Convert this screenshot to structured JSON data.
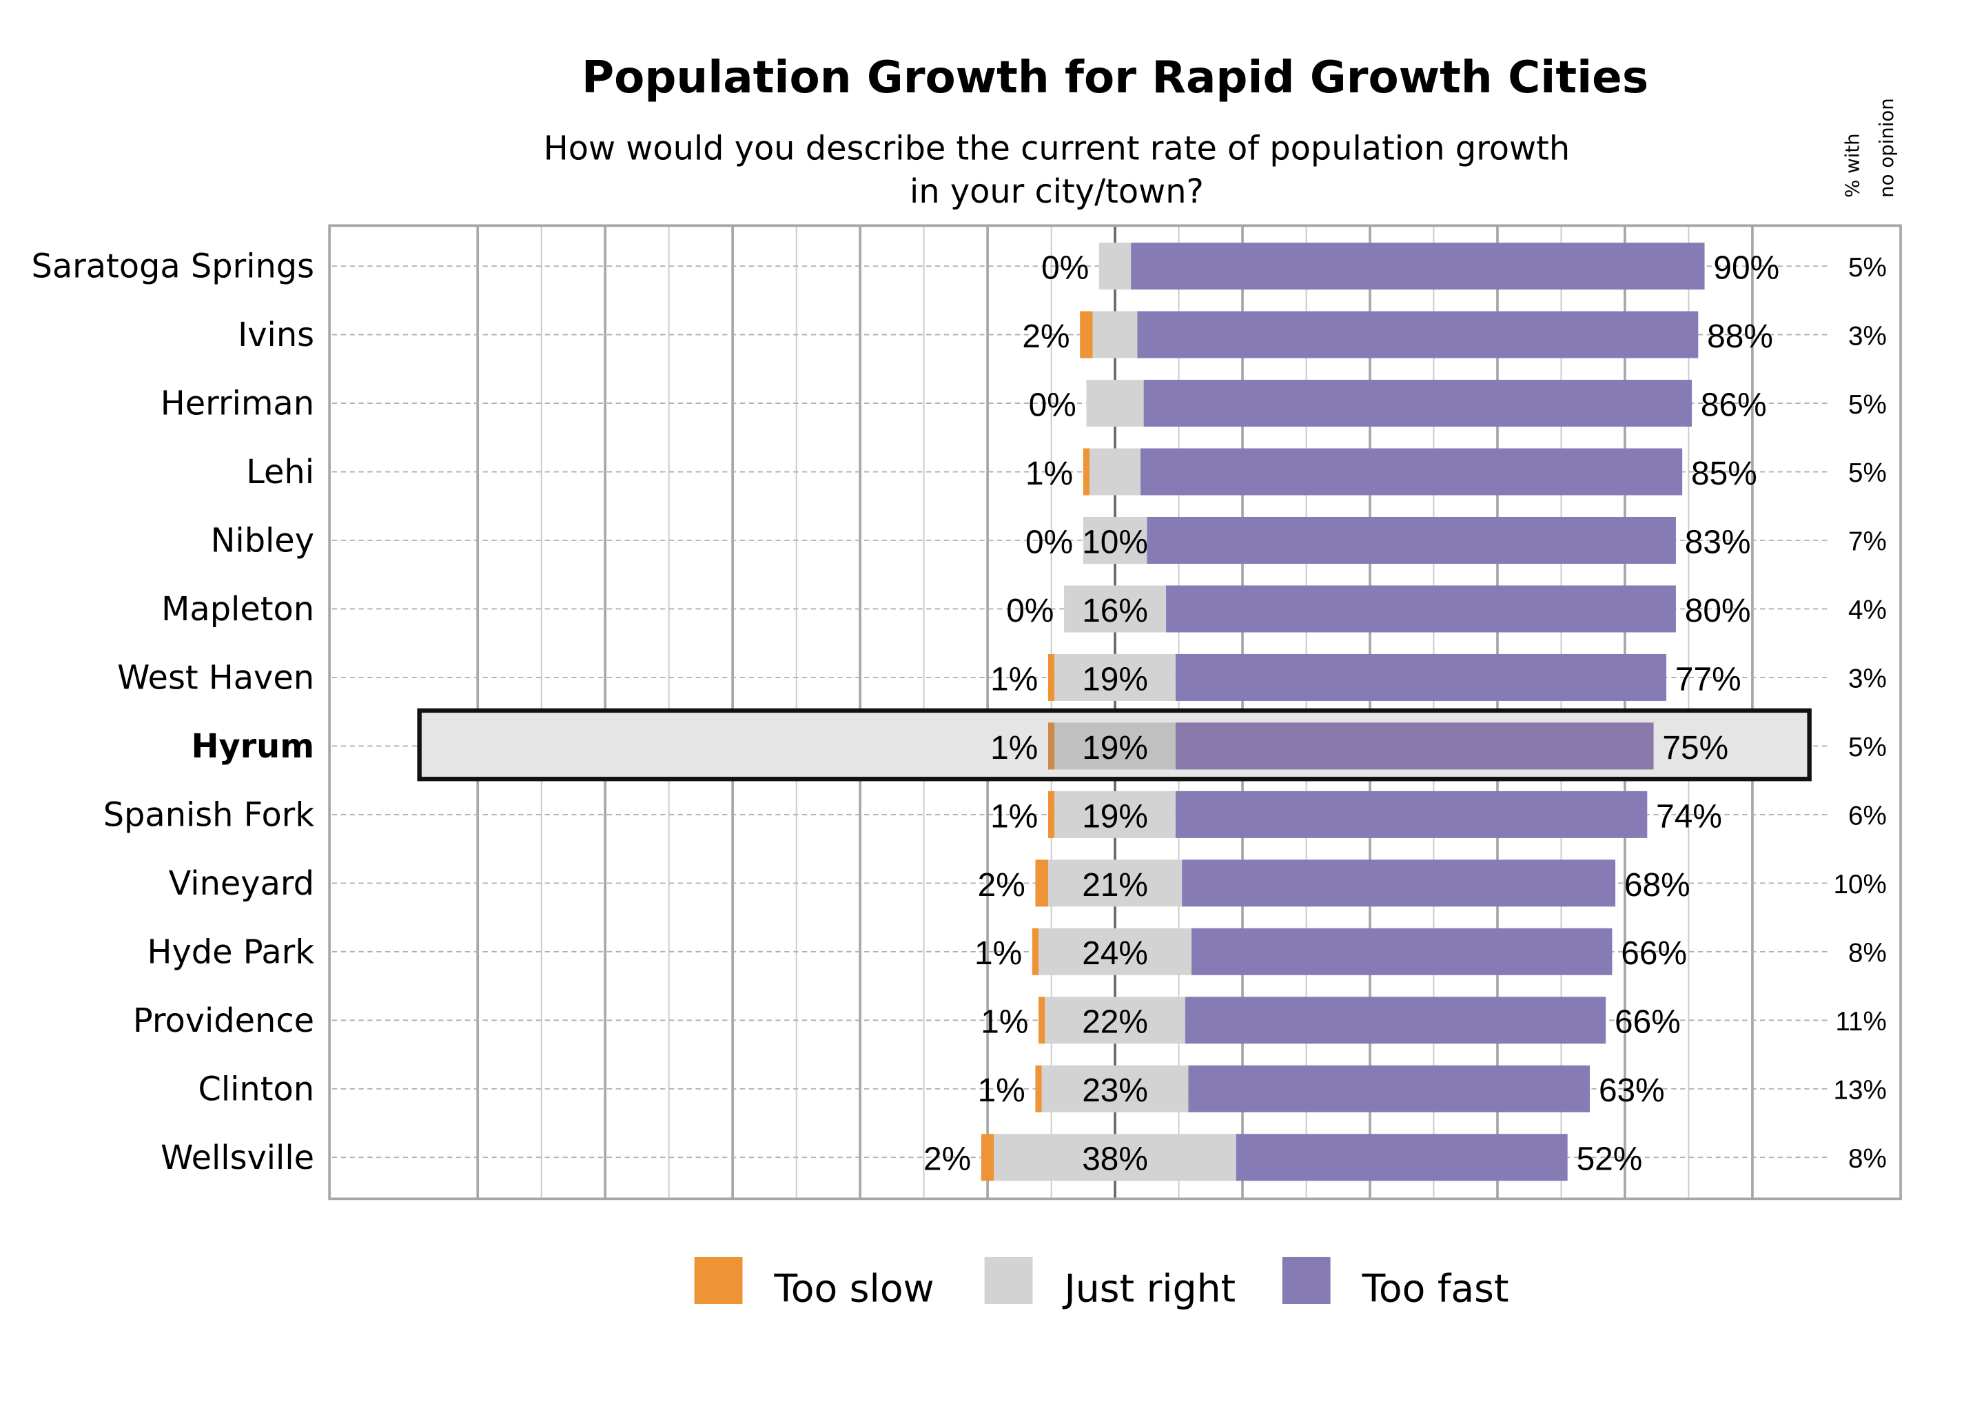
{
  "chart_data": {
    "type": "bar",
    "orientation": "horizontal",
    "stacked": "diverging",
    "title": "Population Growth for Rapid Growth Cities",
    "subtitle_lines": [
      "How would you describe the current rate of population growth",
      "in your city/town?"
    ],
    "side_header_lines": [
      "% with",
      "no opinion"
    ],
    "categories": [
      "Saratoga Springs",
      "Ivins",
      "Herriman",
      "Lehi",
      "Nibley",
      "Mapleton",
      "West Haven",
      "Hyrum",
      "Spanish Fork",
      "Vineyard",
      "Hyde Park",
      "Providence",
      "Clinton",
      "Wellsville"
    ],
    "highlighted_category": "Hyrum",
    "series": [
      {
        "name": "Too slow",
        "color": "#ee9336",
        "values": [
          0,
          2,
          0,
          1,
          0,
          0,
          1,
          1,
          1,
          2,
          1,
          1,
          1,
          2
        ],
        "labels": [
          "0%",
          "2%",
          "0%",
          "1%",
          "0%",
          "0%",
          "1%",
          "1%",
          "1%",
          "2%",
          "1%",
          "1%",
          "1%",
          "2%"
        ]
      },
      {
        "name": "Just right",
        "color": "#d3d3d3",
        "values": [
          5,
          7,
          9,
          8,
          10,
          16,
          19,
          19,
          19,
          21,
          24,
          22,
          23,
          38
        ],
        "labels": [
          "",
          "",
          "",
          "",
          "10%",
          "16%",
          "19%",
          "19%",
          "19%",
          "21%",
          "24%",
          "22%",
          "23%",
          "38%"
        ]
      },
      {
        "name": "Too fast",
        "color": "#877bb6",
        "values": [
          90,
          88,
          86,
          85,
          83,
          80,
          77,
          75,
          74,
          68,
          66,
          66,
          63,
          52
        ],
        "labels": [
          "90%",
          "88%",
          "86%",
          "85%",
          "83%",
          "80%",
          "77%",
          "75%",
          "74%",
          "68%",
          "66%",
          "66%",
          "63%",
          "52%"
        ]
      }
    ],
    "no_opinion": [
      "5%",
      "3%",
      "5%",
      "5%",
      "7%",
      "4%",
      "3%",
      "5%",
      "6%",
      "10%",
      "8%",
      "11%",
      "13%",
      "8%"
    ],
    "xlim": [
      -100,
      120
    ],
    "grid": true,
    "legend_position": "bottom"
  }
}
